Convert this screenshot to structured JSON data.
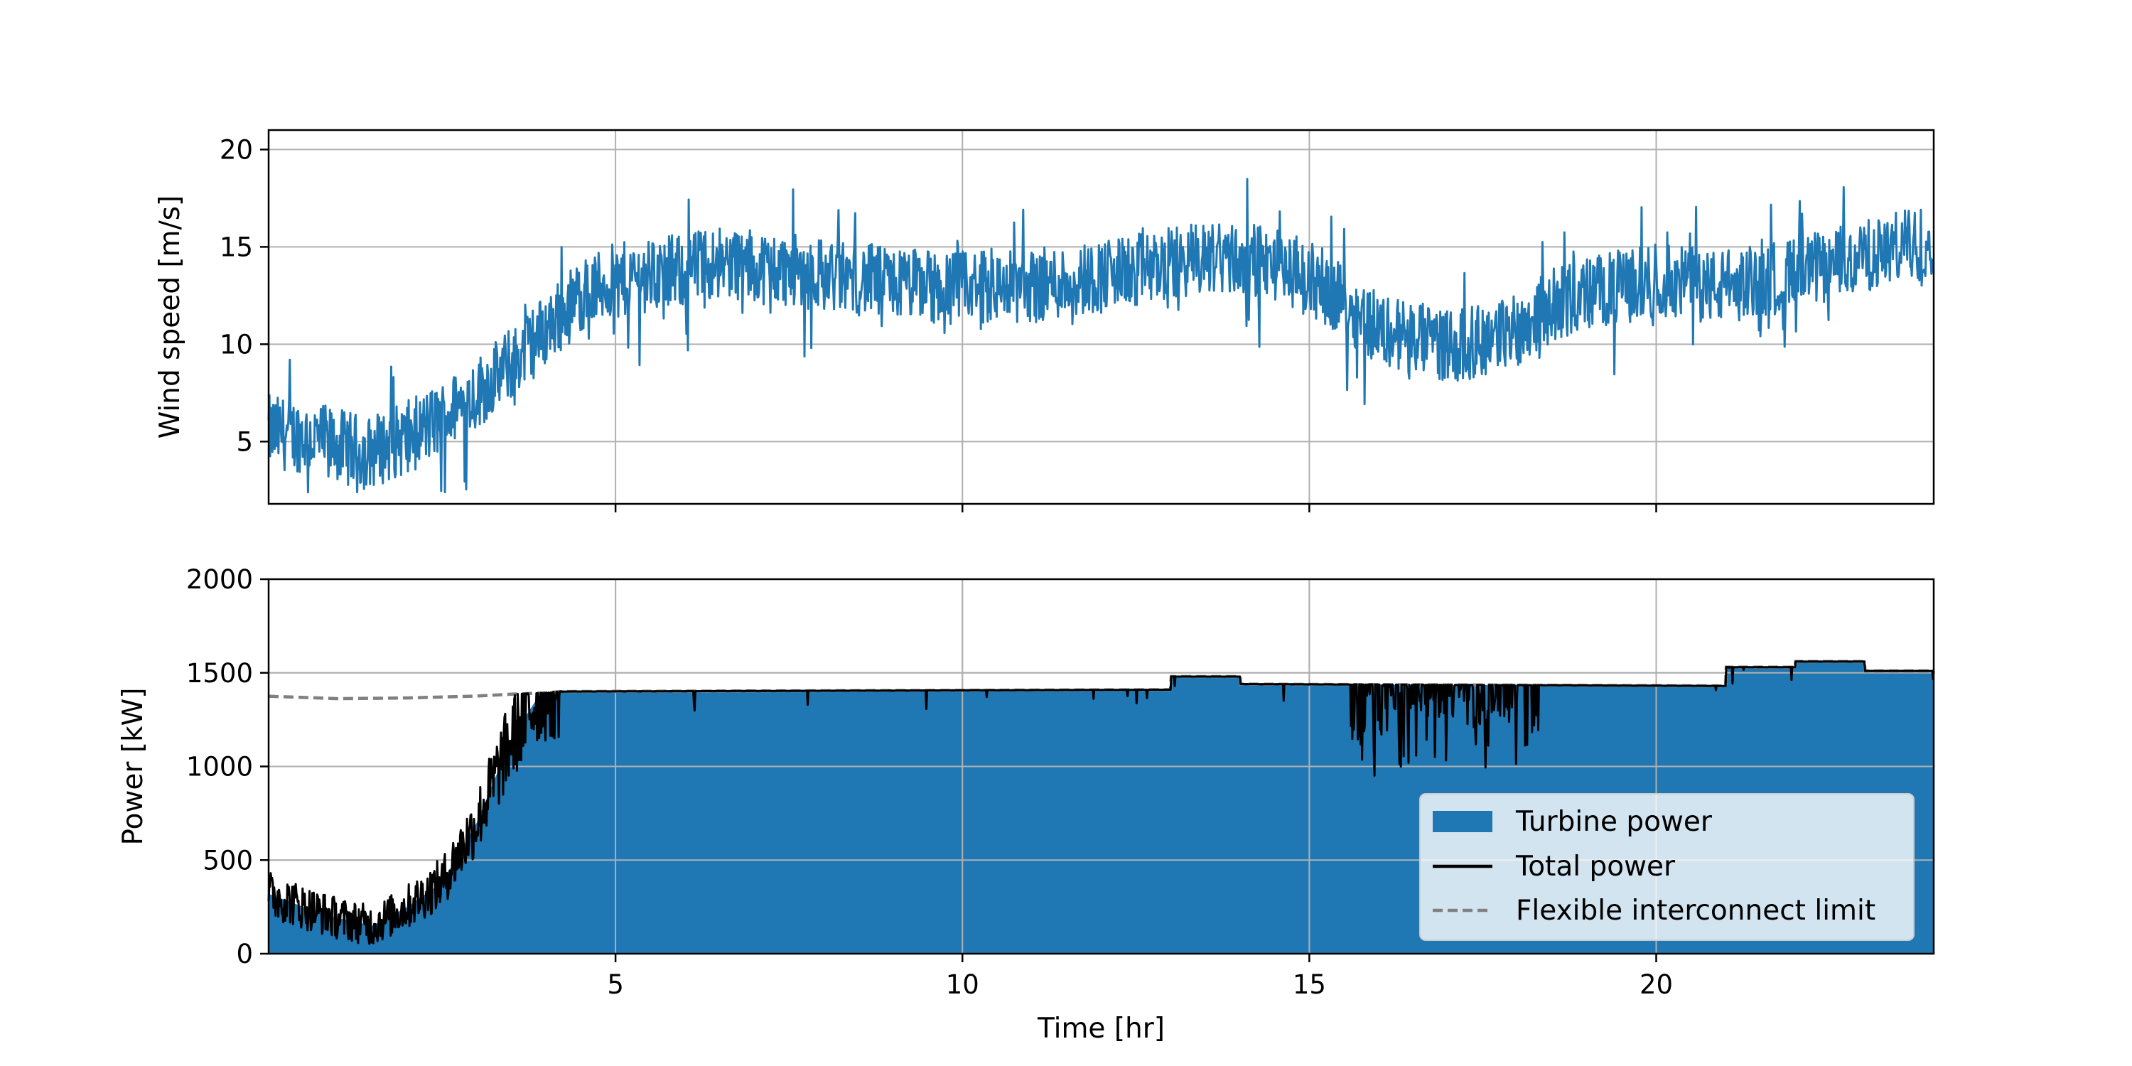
{
  "chart_data": [
    {
      "type": "line",
      "ylabel": "Wind speed [m/s]",
      "xlabel": "",
      "xlim": [
        0,
        24
      ],
      "ylim": [
        1.8,
        21
      ],
      "xticks": [
        5,
        10,
        15,
        20
      ],
      "yticks": [
        5,
        10,
        15,
        20
      ],
      "grid": true,
      "noise_amplitude": 1.9,
      "series": [
        {
          "color": "#1f77b4",
          "trend": {
            "x": [
              0,
              0.5,
              1.0,
              1.4,
              2.0,
              2.5,
              3.0,
              3.5,
              4.0,
              4.5,
              5.0,
              6.0,
              6.5,
              7.0,
              8.0,
              9.0,
              10.0,
              11.0,
              12.0,
              13.0,
              13.5,
              14.5,
              15.2,
              16.0,
              16.5,
              17.2,
              18.0,
              18.5,
              19.0,
              20.0,
              21.0,
              22.0,
              23.0,
              24.0
            ],
            "y": [
              5.5,
              5.3,
              4.8,
              4.4,
              5.2,
              6.2,
              7.5,
              9.0,
              10.8,
              12.5,
              13.3,
              13.8,
              14.3,
              14.0,
              13.6,
              13.1,
              12.9,
              13.0,
              13.5,
              14.1,
              14.5,
              14.2,
              13.0,
              10.8,
              10.3,
              9.9,
              10.8,
              12.0,
              12.6,
              13.3,
              12.9,
              13.6,
              14.5,
              15.4
            ]
          }
        }
      ]
    },
    {
      "type": "area",
      "xlabel": "Time [hr]",
      "ylabel": "Power [kW]",
      "xlim": [
        0,
        24
      ],
      "ylim": [
        0,
        2000
      ],
      "xticks": [
        5,
        10,
        15,
        20
      ],
      "yticks": [
        0,
        500,
        1000,
        1500,
        2000
      ],
      "grid": true,
      "legend_position": "lower-right",
      "series": [
        {
          "name": "Turbine power",
          "kind": "fill",
          "color": "#1f77b4",
          "x": [
            0,
            0.5,
            1.0,
            1.5,
            2.0,
            2.5,
            3.0,
            3.5,
            3.9,
            4.2,
            13.0,
            13.01,
            14.0,
            14.01,
            21.0,
            21.01,
            22.0,
            22.01,
            23.0,
            23.01,
            24.0
          ],
          "values": [
            320,
            250,
            190,
            150,
            250,
            380,
            700,
            1150,
            1380,
            1400,
            1410,
            1480,
            1480,
            1440,
            1430,
            1530,
            1530,
            1560,
            1560,
            1510,
            1510
          ]
        },
        {
          "name": "Total power",
          "kind": "line",
          "color": "#000000",
          "x": [
            0,
            0.5,
            1.0,
            1.5,
            2.0,
            2.5,
            3.0,
            3.5,
            3.9,
            4.2,
            13.0,
            13.01,
            14.0,
            14.01,
            21.0,
            21.01,
            22.0,
            22.01,
            23.0,
            23.01,
            24.0
          ],
          "values": [
            320,
            250,
            190,
            150,
            250,
            380,
            700,
            1150,
            1380,
            1400,
            1410,
            1480,
            1480,
            1440,
            1430,
            1530,
            1530,
            1560,
            1560,
            1510,
            1510
          ],
          "dips": {
            "x_range": [
              15.6,
              18.3
            ],
            "min": 940
          }
        },
        {
          "name": "Flexible interconnect limit",
          "kind": "dashed",
          "color": "#808080",
          "x": [
            0,
            1.0,
            2.0,
            3.0,
            3.5,
            4.0,
            4.2,
            13.0,
            13.01,
            14.0,
            14.01,
            21.0,
            21.01,
            22.0,
            22.01,
            23.0,
            23.01,
            24.0
          ],
          "values": [
            1375,
            1362,
            1366,
            1376,
            1386,
            1393,
            1400,
            1410,
            1480,
            1480,
            1440,
            1430,
            1530,
            1530,
            1560,
            1560,
            1510,
            1510
          ]
        }
      ]
    }
  ]
}
